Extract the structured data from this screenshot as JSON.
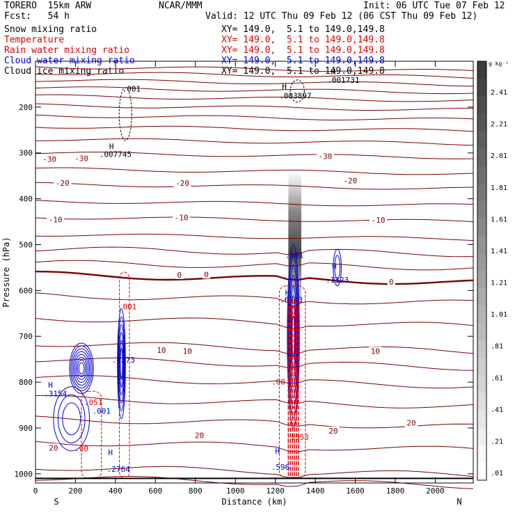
{
  "header": {
    "model": "TORERO  15km ARW",
    "org": "NCAR/MMM",
    "init": "Init: 06 UTC Tue 07 Feb 12",
    "fcst": "Fcst:   54 h",
    "valid": "Valid: 12 UTC Thu 09 Feb 12 (06 CST Thu 09 Feb 12)"
  },
  "fields": [
    {
      "name": "Snow mixing ratio",
      "xy": "XY= 149.0,  5.1 to 149.0,149.8",
      "color": "#000000"
    },
    {
      "name": "Temperature",
      "xy": "XY= 149.0,  5.1 to 149.0,149.8",
      "color": "#e00000"
    },
    {
      "name": "Rain water mixing ratio",
      "xy": "XY= 149.0,  5.1 to 149.0,149.8",
      "color": "#e00000"
    },
    {
      "name": "Cloud water mixing ratio",
      "xy": "XY= 149.0,  5.1 to 149.0,149.8",
      "color": "#0000d0"
    },
    {
      "name": "Cloud ice mixing ratio",
      "xy": "XY= 149.0,  5.1 to 149.0,149.8",
      "color": "#000000"
    }
  ],
  "chart_data": {
    "type": "contour",
    "xlabel": "Distance (km)",
    "ylabel": "Pressure (hPa)",
    "xlim": [
      0,
      2190
    ],
    "ylim": [
      1020,
      100
    ],
    "xticks": [
      "0",
      "200",
      "400",
      "600",
      "800",
      "1000",
      "1200",
      "1400",
      "1600",
      "1800",
      "2000"
    ],
    "yticks": [
      "200",
      "300",
      "400",
      "500",
      "600",
      "700",
      "800",
      "900",
      "1000"
    ],
    "x_ends": {
      "left": "S",
      "right": "N"
    },
    "colorbar": {
      "unit": "g kg⁻¹",
      "labels": [
        "2.41",
        "2.21",
        "2.01",
        "1.81",
        "1.61",
        "1.41",
        "1.21",
        "1.01",
        ".81",
        ".61",
        ".41",
        ".21",
        ".01"
      ]
    },
    "temperature_labels": [
      {
        "text": "-30",
        "x": 230,
        "p": 312
      },
      {
        "text": "-30",
        "x": 70,
        "p": 313
      },
      {
        "text": "-30",
        "x": 1450,
        "p": 307
      },
      {
        "text": "-20",
        "x": 135,
        "p": 366
      },
      {
        "text": "-20",
        "x": 735,
        "p": 366
      },
      {
        "text": "-20",
        "x": 1575,
        "p": 360
      },
      {
        "text": "-10",
        "x": 100,
        "p": 445
      },
      {
        "text": "-10",
        "x": 730,
        "p": 441
      },
      {
        "text": "-10",
        "x": 1715,
        "p": 446
      },
      {
        "text": "0",
        "x": 720,
        "p": 566
      },
      {
        "text": "0",
        "x": 855,
        "p": 565
      },
      {
        "text": "0",
        "x": 1780,
        "p": 581
      },
      {
        "text": "10",
        "x": 630,
        "p": 730
      },
      {
        "text": "10",
        "x": 760,
        "p": 732
      },
      {
        "text": "10",
        "x": 1700,
        "p": 732
      },
      {
        "text": "20",
        "x": 90,
        "p": 943
      },
      {
        "text": "20",
        "x": 820,
        "p": 916
      },
      {
        "text": "20",
        "x": 1490,
        "p": 906
      },
      {
        "text": "20",
        "x": 1880,
        "p": 889
      }
    ],
    "moisture_labels": [
      {
        "text": ".001",
        "x": 480,
        "p": 160,
        "color": "#000000"
      },
      {
        "text": ".007745",
        "x": 400,
        "p": 303,
        "color": "#000000"
      },
      {
        "text": ".003897",
        "x": 1300,
        "p": 175,
        "color": "#000000"
      },
      {
        "text": ".001731",
        "x": 1540,
        "p": 141,
        "color": "#000000"
      },
      {
        "text": ".001",
        "x": 1295,
        "p": 523,
        "color": "#0000d0"
      },
      {
        "text": ".1123",
        "x": 1510,
        "p": 577,
        "color": "#0000d0"
      },
      {
        "text": ".6743",
        "x": 1280,
        "p": 620,
        "color": "#0000d0"
      },
      {
        "text": ".4273",
        "x": 440,
        "p": 751,
        "color": "#0000d0"
      },
      {
        "text": ".3154",
        "x": 100,
        "p": 825,
        "color": "#0000d0"
      },
      {
        "text": ".001",
        "x": 330,
        "p": 863,
        "color": "#0000d0"
      },
      {
        "text": ".2764",
        "x": 415,
        "p": 990,
        "color": "#0000d0"
      },
      {
        "text": ".596",
        "x": 1225,
        "p": 985,
        "color": "#0000d0"
      },
      {
        "text": ".001",
        "x": 460,
        "p": 635,
        "color": "#e00000"
      },
      {
        "text": ".051",
        "x": 290,
        "p": 844,
        "color": "#e00000"
      },
      {
        "text": ".1553",
        "x": 1310,
        "p": 920,
        "color": "#e00000"
      },
      {
        "text": ".00",
        "x": 1215,
        "p": 799,
        "color": "#e00000"
      },
      {
        "text": ".00",
        "x": 230,
        "p": 945,
        "color": "#e00000"
      },
      {
        "text": "H",
        "x": 1495,
        "p": 547,
        "color": "#0000d0"
      },
      {
        "text": "H",
        "x": 1260,
        "p": 605,
        "color": "#0000d0"
      },
      {
        "text": "H",
        "x": 75,
        "p": 806,
        "color": "#0000d0"
      },
      {
        "text": "H",
        "x": 375,
        "p": 953,
        "color": "#0000d0"
      },
      {
        "text": "H",
        "x": 1210,
        "p": 950,
        "color": "#0000d0"
      },
      {
        "text": "H",
        "x": 380,
        "p": 285,
        "color": "#000000"
      },
      {
        "text": "H",
        "x": 1245,
        "p": 155,
        "color": "#000000"
      },
      {
        "text": "H",
        "x": 1490,
        "p": 123,
        "color": "#000000"
      }
    ]
  }
}
